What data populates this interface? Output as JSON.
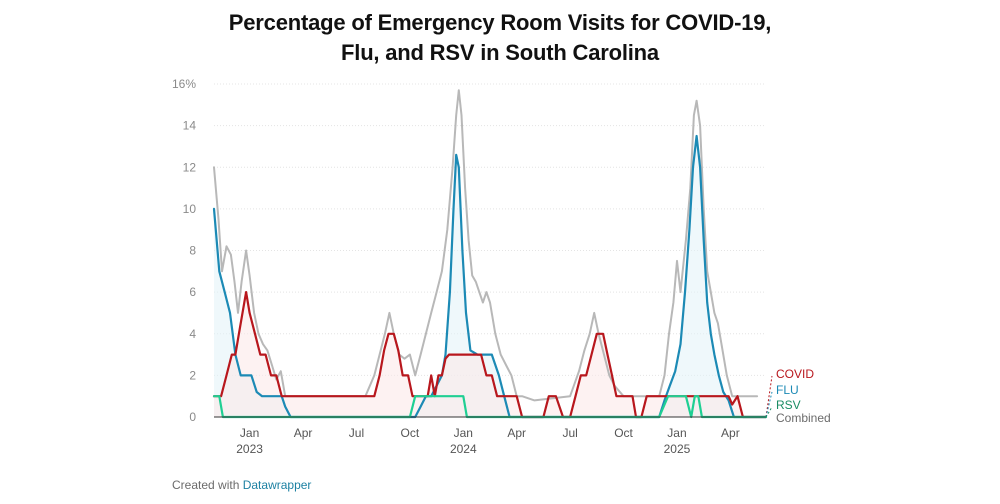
{
  "header": {
    "title_line1": "Percentage of Emergency Room Visits for COVID-19,",
    "title_line2": "Flu, and RSV in South Carolina"
  },
  "footer": {
    "created_with": "Created with",
    "tool": "Datawrapper"
  },
  "chart_data": {
    "type": "line",
    "title": "Percentage of Emergency Room Visits for COVID-19, Flu, and RSV in South Carolina",
    "xlabel": "",
    "ylabel": "",
    "ylim": [
      0,
      16
    ],
    "y_ticks": [
      0,
      2,
      4,
      6,
      8,
      10,
      12,
      14,
      16
    ],
    "y_tick_labels": [
      "0",
      "2",
      "4",
      "6",
      "8",
      "10",
      "12",
      "14",
      "16%"
    ],
    "x_ticks": [
      {
        "pos": 2.0,
        "label": "Jan",
        "sub": "2023"
      },
      {
        "pos": 5.0,
        "label": "Apr",
        "sub": ""
      },
      {
        "pos": 8.0,
        "label": "Jul",
        "sub": ""
      },
      {
        "pos": 11.0,
        "label": "Oct",
        "sub": ""
      },
      {
        "pos": 14.0,
        "label": "Jan",
        "sub": "2024"
      },
      {
        "pos": 17.0,
        "label": "Apr",
        "sub": ""
      },
      {
        "pos": 20.0,
        "label": "Jul",
        "sub": ""
      },
      {
        "pos": 23.0,
        "label": "Oct",
        "sub": ""
      },
      {
        "pos": 26.0,
        "label": "Jan",
        "sub": "2025"
      },
      {
        "pos": 29.0,
        "label": "Apr",
        "sub": ""
      }
    ],
    "xlim": [
      0.0,
      31.0
    ],
    "grid": true,
    "legend_placement": "right-end",
    "series": [
      {
        "name": "Combined",
        "color": "#b8b8b8",
        "fill": false,
        "points": [
          [
            0.0,
            12
          ],
          [
            0.25,
            9.5
          ],
          [
            0.45,
            7
          ],
          [
            0.7,
            8.2
          ],
          [
            0.95,
            7.8
          ],
          [
            1.15,
            6.5
          ],
          [
            1.35,
            5
          ],
          [
            1.55,
            6.5
          ],
          [
            1.8,
            8
          ],
          [
            2.0,
            6.8
          ],
          [
            2.25,
            5
          ],
          [
            2.5,
            4
          ],
          [
            2.75,
            3.5
          ],
          [
            3.0,
            3.2
          ],
          [
            3.25,
            2.5
          ],
          [
            3.5,
            1.8
          ],
          [
            3.75,
            2.2
          ],
          [
            4.0,
            1
          ],
          [
            4.3,
            1
          ],
          [
            5.0,
            1
          ],
          [
            7.0,
            1
          ],
          [
            8.5,
            1
          ],
          [
            9.0,
            2
          ],
          [
            9.3,
            3
          ],
          [
            9.6,
            4
          ],
          [
            9.85,
            5
          ],
          [
            10.1,
            4
          ],
          [
            10.4,
            3
          ],
          [
            10.7,
            2.8
          ],
          [
            11.0,
            3
          ],
          [
            11.3,
            2
          ],
          [
            11.6,
            3
          ],
          [
            11.9,
            4
          ],
          [
            12.2,
            5
          ],
          [
            12.5,
            6
          ],
          [
            12.8,
            7
          ],
          [
            13.1,
            9
          ],
          [
            13.4,
            12
          ],
          [
            13.6,
            14.5
          ],
          [
            13.75,
            15.7
          ],
          [
            13.9,
            14.5
          ],
          [
            14.1,
            11
          ],
          [
            14.3,
            8.5
          ],
          [
            14.5,
            6.8
          ],
          [
            14.7,
            6.5
          ],
          [
            14.9,
            6
          ],
          [
            15.1,
            5.5
          ],
          [
            15.3,
            6
          ],
          [
            15.5,
            5.5
          ],
          [
            15.8,
            4
          ],
          [
            16.1,
            3
          ],
          [
            16.4,
            2.5
          ],
          [
            16.7,
            2
          ],
          [
            17.0,
            1
          ],
          [
            17.3,
            1
          ],
          [
            18.0,
            0.8
          ],
          [
            20.0,
            1
          ],
          [
            20.5,
            2.2
          ],
          [
            20.8,
            3.2
          ],
          [
            21.1,
            4
          ],
          [
            21.35,
            5
          ],
          [
            21.6,
            4
          ],
          [
            21.9,
            3
          ],
          [
            22.2,
            2
          ],
          [
            22.5,
            1.5
          ],
          [
            23.0,
            1
          ],
          [
            24.0,
            1
          ],
          [
            25.0,
            1
          ],
          [
            25.3,
            2
          ],
          [
            25.55,
            4
          ],
          [
            25.8,
            5.5
          ],
          [
            26.0,
            7.5
          ],
          [
            26.2,
            6
          ],
          [
            26.5,
            8.5
          ],
          [
            26.75,
            11
          ],
          [
            26.95,
            14.5
          ],
          [
            27.1,
            15.2
          ],
          [
            27.3,
            14
          ],
          [
            27.5,
            10
          ],
          [
            27.7,
            7
          ],
          [
            27.9,
            6
          ],
          [
            28.1,
            5
          ],
          [
            28.3,
            4.5
          ],
          [
            28.5,
            3.5
          ],
          [
            28.8,
            2
          ],
          [
            29.1,
            1
          ],
          [
            29.5,
            1
          ],
          [
            30.0,
            1
          ],
          [
            30.5,
            1
          ]
        ]
      },
      {
        "name": "FLU",
        "color": "#1c8ab5",
        "fill": "#e2f2f7",
        "points": [
          [
            0.0,
            10
          ],
          [
            0.3,
            7
          ],
          [
            0.6,
            6
          ],
          [
            0.9,
            5
          ],
          [
            1.2,
            3
          ],
          [
            1.5,
            2
          ],
          [
            1.8,
            2
          ],
          [
            2.1,
            2
          ],
          [
            2.4,
            1.2
          ],
          [
            2.7,
            1
          ],
          [
            3.0,
            1
          ],
          [
            3.5,
            1
          ],
          [
            3.8,
            1
          ],
          [
            4.0,
            0.5
          ],
          [
            4.3,
            0
          ],
          [
            11.0,
            0
          ],
          [
            11.3,
            0
          ],
          [
            11.6,
            0.5
          ],
          [
            11.9,
            1
          ],
          [
            12.2,
            1
          ],
          [
            12.5,
            1.5
          ],
          [
            12.8,
            2
          ],
          [
            13.0,
            3
          ],
          [
            13.25,
            6
          ],
          [
            13.45,
            10
          ],
          [
            13.6,
            12.6
          ],
          [
            13.75,
            12
          ],
          [
            13.95,
            8
          ],
          [
            14.15,
            5
          ],
          [
            14.4,
            3.2
          ],
          [
            14.8,
            3
          ],
          [
            15.2,
            3
          ],
          [
            15.6,
            3
          ],
          [
            16.0,
            2
          ],
          [
            16.3,
            1
          ],
          [
            16.6,
            0
          ],
          [
            24.5,
            0
          ],
          [
            25.0,
            0
          ],
          [
            25.3,
            0.8
          ],
          [
            25.6,
            1.5
          ],
          [
            25.9,
            2.2
          ],
          [
            26.2,
            3.5
          ],
          [
            26.45,
            6
          ],
          [
            26.7,
            9
          ],
          [
            26.9,
            12
          ],
          [
            27.1,
            13.5
          ],
          [
            27.3,
            12
          ],
          [
            27.5,
            8.5
          ],
          [
            27.7,
            5.5
          ],
          [
            27.9,
            4
          ],
          [
            28.1,
            3
          ],
          [
            28.35,
            2
          ],
          [
            28.6,
            1.2
          ],
          [
            28.9,
            0.8
          ],
          [
            29.2,
            0
          ],
          [
            31.0,
            0
          ]
        ]
      },
      {
        "name": "COVID",
        "color": "#b8171d",
        "fill": "#fbe8e8",
        "points": [
          [
            0.0,
            1
          ],
          [
            0.4,
            1
          ],
          [
            0.7,
            2
          ],
          [
            1.0,
            3
          ],
          [
            1.2,
            3
          ],
          [
            1.4,
            4
          ],
          [
            1.6,
            5
          ],
          [
            1.8,
            6
          ],
          [
            2.0,
            5
          ],
          [
            2.3,
            4
          ],
          [
            2.6,
            3
          ],
          [
            2.9,
            3
          ],
          [
            3.2,
            2
          ],
          [
            3.5,
            2
          ],
          [
            3.8,
            1
          ],
          [
            4.3,
            1
          ],
          [
            5.0,
            1
          ],
          [
            6.0,
            1
          ],
          [
            7.0,
            1
          ],
          [
            8.0,
            1
          ],
          [
            9.0,
            1
          ],
          [
            9.3,
            2
          ],
          [
            9.55,
            3.2
          ],
          [
            9.8,
            4
          ],
          [
            10.1,
            4
          ],
          [
            10.35,
            3.2
          ],
          [
            10.6,
            2
          ],
          [
            10.9,
            2
          ],
          [
            11.15,
            1
          ],
          [
            11.4,
            1
          ],
          [
            11.7,
            1
          ],
          [
            12.0,
            1
          ],
          [
            12.2,
            2
          ],
          [
            12.4,
            1
          ],
          [
            12.6,
            2
          ],
          [
            12.8,
            2
          ],
          [
            13.0,
            2.8
          ],
          [
            13.2,
            3
          ],
          [
            13.6,
            3
          ],
          [
            14.2,
            3
          ],
          [
            14.7,
            3
          ],
          [
            15.0,
            3
          ],
          [
            15.3,
            2
          ],
          [
            15.6,
            2
          ],
          [
            15.9,
            1
          ],
          [
            16.3,
            1
          ],
          [
            16.7,
            1
          ],
          [
            17.0,
            1
          ],
          [
            17.3,
            0
          ],
          [
            18.0,
            0
          ],
          [
            18.5,
            0
          ],
          [
            18.8,
            1
          ],
          [
            19.2,
            1
          ],
          [
            19.6,
            0
          ],
          [
            20.0,
            0
          ],
          [
            20.3,
            1
          ],
          [
            20.6,
            2
          ],
          [
            20.9,
            2
          ],
          [
            21.2,
            3
          ],
          [
            21.5,
            4
          ],
          [
            21.85,
            4
          ],
          [
            22.1,
            3
          ],
          [
            22.35,
            2
          ],
          [
            22.6,
            1
          ],
          [
            23.0,
            1
          ],
          [
            23.5,
            1
          ],
          [
            23.7,
            0
          ],
          [
            24.0,
            0
          ],
          [
            24.3,
            1
          ],
          [
            24.7,
            1
          ],
          [
            25.0,
            1
          ],
          [
            25.5,
            1
          ],
          [
            26.0,
            1
          ],
          [
            26.5,
            1
          ],
          [
            27.0,
            1
          ],
          [
            27.5,
            1
          ],
          [
            28.0,
            1
          ],
          [
            28.5,
            1
          ],
          [
            28.9,
            1
          ],
          [
            29.1,
            0.6
          ],
          [
            29.4,
            1
          ],
          [
            29.7,
            0
          ],
          [
            31.0,
            0
          ]
        ]
      },
      {
        "name": "RSV",
        "color": "#1fcf93",
        "fill": false,
        "points": [
          [
            0.0,
            1
          ],
          [
            0.3,
            1
          ],
          [
            0.5,
            0
          ],
          [
            11.0,
            0
          ],
          [
            11.3,
            1
          ],
          [
            12.0,
            1
          ],
          [
            12.5,
            1
          ],
          [
            13.0,
            1
          ],
          [
            13.5,
            1
          ],
          [
            14.0,
            1
          ],
          [
            14.2,
            0
          ],
          [
            25.0,
            0
          ],
          [
            25.5,
            1
          ],
          [
            26.0,
            1
          ],
          [
            26.5,
            1
          ],
          [
            26.8,
            0
          ],
          [
            27.0,
            1
          ],
          [
            27.2,
            1
          ],
          [
            27.4,
            0
          ],
          [
            31.0,
            0
          ]
        ]
      }
    ],
    "legend": [
      {
        "label": "COVID",
        "color": "#b8171d"
      },
      {
        "label": "FLU",
        "color": "#1c8ab5"
      },
      {
        "label": "RSV",
        "color": "#1a8c63"
      },
      {
        "label": "Combined",
        "color": "#6b6b6b"
      }
    ]
  }
}
